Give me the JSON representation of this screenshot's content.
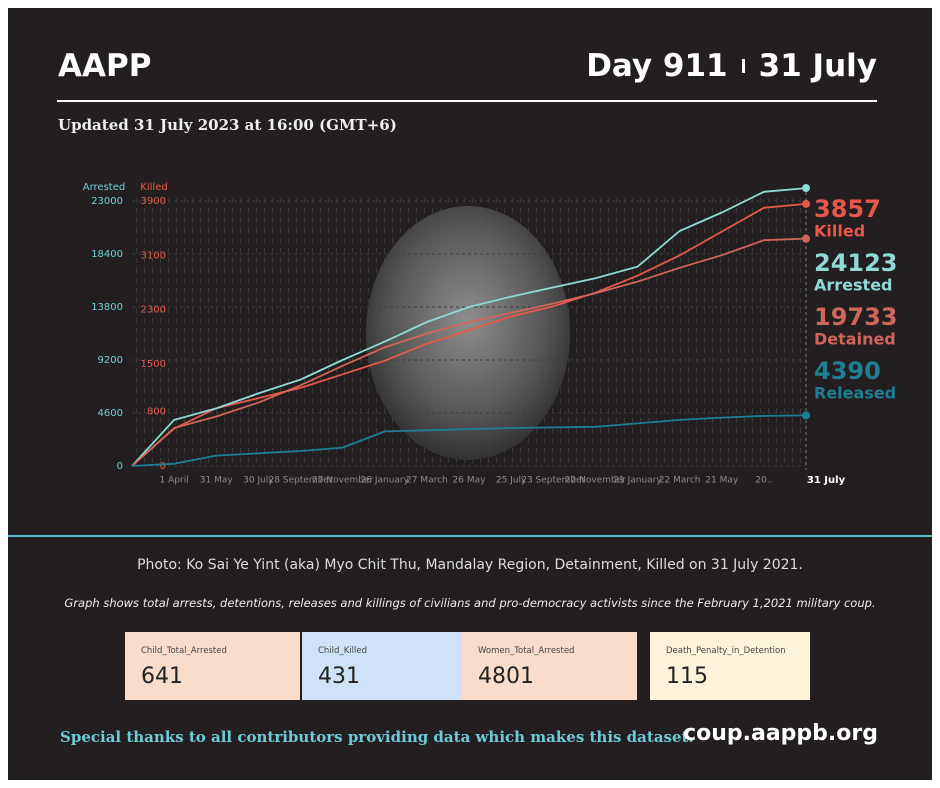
{
  "header": {
    "title": "AAPP",
    "day": "Day 911",
    "date": "31 July",
    "updated": "Updated 31 July 2023 at 16:00 (GMT+6)"
  },
  "chart_data": {
    "type": "line",
    "ylabel": "Arrested",
    "y2label": "Killed",
    "categories": [
      null,
      "1 April",
      "31 May",
      "30 July",
      "28 September",
      "27 November",
      "26 January",
      "27 March",
      "26 May",
      "25 July",
      "23 September",
      "22 November",
      "21 January",
      "22 March",
      "21 May",
      "20..",
      "31 July"
    ],
    "ylim": [
      0,
      23000
    ],
    "yticks": [
      0,
      4600,
      9200,
      13800,
      18400,
      23000
    ],
    "y2lim": [
      0,
      3900
    ],
    "y2ticks": [
      0,
      800,
      1500,
      2300,
      3100,
      3900
    ],
    "grid": true,
    "series": [
      {
        "name": "Killed",
        "color": "#e8574a",
        "axis": "y2",
        "values": [
          0,
          550,
          850,
          1000,
          1150,
          1350,
          1550,
          1800,
          2000,
          2200,
          2350,
          2550,
          2800,
          3100,
          3450,
          3800,
          3857
        ]
      },
      {
        "name": "Arrested",
        "color": "#8fd9d6",
        "values": [
          0,
          4000,
          5000,
          6300,
          7500,
          9200,
          10800,
          12500,
          13800,
          14700,
          15500,
          16300,
          17300,
          20400,
          22000,
          23800,
          24123
        ]
      },
      {
        "name": "Detained",
        "color": "#d0665a",
        "values": [
          0,
          3300,
          4300,
          5500,
          7000,
          8700,
          10300,
          11500,
          12500,
          13300,
          14100,
          15000,
          16000,
          17200,
          18300,
          19600,
          19733
        ]
      },
      {
        "name": "Released",
        "color": "#1e7f93",
        "values": [
          0,
          200,
          900,
          1100,
          1300,
          1600,
          3000,
          3100,
          3200,
          3300,
          3350,
          3400,
          3700,
          4000,
          4200,
          4350,
          4390
        ]
      }
    ]
  },
  "caption": "Photo: Ko Sai Ye Yint (aka) Myo Chit Thu, Mandalay Region, Detainment, Killed on 31 July 2021.",
  "note": "Graph shows total arrests, detentions, releases and killings of civilians and pro-democracy activists since the February 1,2021 military coup.",
  "cards": [
    {
      "label": "Child_Total_Arrested",
      "value": "641"
    },
    {
      "label": "Child_Killed",
      "value": "431"
    },
    {
      "label": "Women_Total_Arrested",
      "value": "4801"
    },
    {
      "label": "Death_Penalty_in_Detention",
      "value": "115"
    }
  ],
  "footer": {
    "thanks": "Special thanks to all contributors providing data which makes this dataset.",
    "url": "coup.aappb.org"
  }
}
